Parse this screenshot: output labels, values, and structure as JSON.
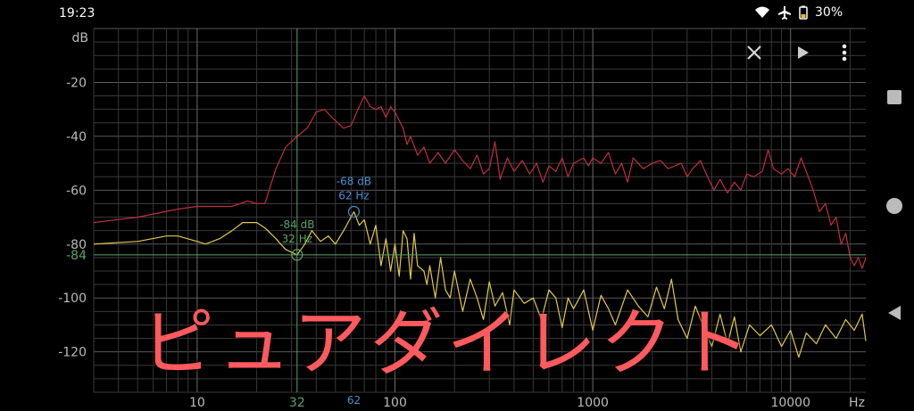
{
  "status_bar": {
    "time": "19:23",
    "icons": [
      "wifi-icon",
      "airplane-mode-icon",
      "battery-icon"
    ],
    "battery": "30%"
  },
  "toolbar": {
    "icons": [
      "close-icon",
      "play-icon",
      "more-vert-icon"
    ]
  },
  "navigation_bar": {
    "icons": [
      "recents-square-icon",
      "home-circle-icon",
      "back-triangle-icon"
    ]
  },
  "overlay_text": "ピュアダイレクト",
  "colors": {
    "series_red": "#c0303a",
    "series_yellow": "#e3c84a",
    "cursor_green": "#5aa36a",
    "cursor_blue": "#4a8fd0",
    "overlay": "#ff5a5e"
  },
  "chart_data": {
    "type": "line",
    "xscale": "log",
    "xlabel": "Hz",
    "ylabel": "dB",
    "xlim": [
      3,
      24000
    ],
    "ylim": [
      -135,
      0
    ],
    "grid": true,
    "x_ticks": [
      "10",
      "100",
      "1000",
      "10000"
    ],
    "y_ticks": [
      "-20",
      "-40",
      "-60",
      "-80",
      "-100",
      "-120"
    ],
    "cursors": [
      {
        "freq": 32,
        "db": -84,
        "db_label": "-84 dB",
        "freq_label": "32 Hz",
        "axis_freq_label": "32",
        "axis_db_label": "-84",
        "color": "#5aa36a"
      },
      {
        "freq": 62,
        "db": -68,
        "db_label": "-68 dB",
        "freq_label": "62 Hz",
        "axis_freq_label": "62",
        "color": "#4a8fd0"
      }
    ],
    "series": [
      {
        "color": "#c0303a",
        "points": [
          [
            3,
            -72
          ],
          [
            5,
            -70
          ],
          [
            8,
            -67
          ],
          [
            10,
            -66
          ],
          [
            15,
            -66
          ],
          [
            18,
            -64
          ],
          [
            20,
            -65
          ],
          [
            22,
            -65
          ],
          [
            25,
            -52
          ],
          [
            28,
            -44
          ],
          [
            32,
            -40
          ],
          [
            36,
            -37
          ],
          [
            40,
            -31
          ],
          [
            44,
            -30
          ],
          [
            48,
            -33
          ],
          [
            55,
            -37
          ],
          [
            60,
            -36
          ],
          [
            65,
            -30
          ],
          [
            70,
            -25
          ],
          [
            75,
            -29
          ],
          [
            80,
            -30
          ],
          [
            85,
            -29
          ],
          [
            90,
            -33
          ],
          [
            95,
            -29
          ],
          [
            100,
            -31
          ],
          [
            110,
            -37
          ],
          [
            115,
            -43
          ],
          [
            120,
            -40
          ],
          [
            130,
            -47
          ],
          [
            140,
            -44
          ],
          [
            150,
            -50
          ],
          [
            165,
            -46
          ],
          [
            180,
            -50
          ],
          [
            200,
            -45
          ],
          [
            220,
            -49
          ],
          [
            240,
            -52
          ],
          [
            260,
            -47
          ],
          [
            280,
            -54
          ],
          [
            300,
            -52
          ],
          [
            320,
            -42
          ],
          [
            340,
            -56
          ],
          [
            370,
            -48
          ],
          [
            400,
            -53
          ],
          [
            440,
            -49
          ],
          [
            480,
            -54
          ],
          [
            520,
            -50
          ],
          [
            560,
            -57
          ],
          [
            600,
            -51
          ],
          [
            650,
            -53
          ],
          [
            700,
            -48
          ],
          [
            750,
            -55
          ],
          [
            800,
            -50
          ],
          [
            900,
            -48
          ],
          [
            950,
            -51
          ],
          [
            1000,
            -48
          ],
          [
            1100,
            -50
          ],
          [
            1200,
            -46
          ],
          [
            1300,
            -54
          ],
          [
            1400,
            -50
          ],
          [
            1500,
            -57
          ],
          [
            1600,
            -48
          ],
          [
            1800,
            -52
          ],
          [
            2000,
            -50
          ],
          [
            2200,
            -49
          ],
          [
            2400,
            -52
          ],
          [
            2600,
            -51
          ],
          [
            2800,
            -50
          ],
          [
            3000,
            -55
          ],
          [
            3200,
            -52
          ],
          [
            3500,
            -49
          ],
          [
            3800,
            -55
          ],
          [
            4100,
            -60
          ],
          [
            4400,
            -56
          ],
          [
            4800,
            -61
          ],
          [
            5200,
            -57
          ],
          [
            5600,
            -60
          ],
          [
            6000,
            -54
          ],
          [
            6500,
            -55
          ],
          [
            7200,
            -53
          ],
          [
            7700,
            -45
          ],
          [
            8200,
            -52
          ],
          [
            9000,
            -54
          ],
          [
            9700,
            -52
          ],
          [
            10500,
            -55
          ],
          [
            11300,
            -48
          ],
          [
            12000,
            -53
          ],
          [
            13000,
            -60
          ],
          [
            14000,
            -68
          ],
          [
            15000,
            -65
          ],
          [
            16000,
            -73
          ],
          [
            17000,
            -70
          ],
          [
            18000,
            -80
          ],
          [
            19000,
            -76
          ],
          [
            20000,
            -85
          ],
          [
            21000,
            -88
          ],
          [
            22000,
            -85
          ],
          [
            23000,
            -89
          ],
          [
            24000,
            -85
          ]
        ]
      },
      {
        "color": "#e3c84a",
        "points": [
          [
            3,
            -80
          ],
          [
            5,
            -79
          ],
          [
            7,
            -77
          ],
          [
            8,
            -77
          ],
          [
            10,
            -79
          ],
          [
            11,
            -80
          ],
          [
            13,
            -78
          ],
          [
            15,
            -75
          ],
          [
            17,
            -72
          ],
          [
            20,
            -72
          ],
          [
            22,
            -74
          ],
          [
            25,
            -78
          ],
          [
            28,
            -82
          ],
          [
            32,
            -84
          ],
          [
            35,
            -80
          ],
          [
            38,
            -75
          ],
          [
            42,
            -79
          ],
          [
            46,
            -77
          ],
          [
            50,
            -80
          ],
          [
            55,
            -75
          ],
          [
            62,
            -68
          ],
          [
            66,
            -73
          ],
          [
            70,
            -71
          ],
          [
            75,
            -80
          ],
          [
            80,
            -73
          ],
          [
            85,
            -88
          ],
          [
            90,
            -78
          ],
          [
            95,
            -90
          ],
          [
            100,
            -80
          ],
          [
            105,
            -92
          ],
          [
            110,
            -75
          ],
          [
            115,
            -78
          ],
          [
            120,
            -93
          ],
          [
            125,
            -76
          ],
          [
            130,
            -88
          ],
          [
            140,
            -90
          ],
          [
            145,
            -95
          ],
          [
            150,
            -88
          ],
          [
            160,
            -100
          ],
          [
            170,
            -85
          ],
          [
            180,
            -97
          ],
          [
            190,
            -100
          ],
          [
            200,
            -90
          ],
          [
            220,
            -105
          ],
          [
            240,
            -93
          ],
          [
            260,
            -100
          ],
          [
            280,
            -108
          ],
          [
            300,
            -94
          ],
          [
            320,
            -103
          ],
          [
            350,
            -98
          ],
          [
            380,
            -110
          ],
          [
            400,
            -97
          ],
          [
            450,
            -102
          ],
          [
            500,
            -100
          ],
          [
            550,
            -108
          ],
          [
            600,
            -97
          ],
          [
            650,
            -100
          ],
          [
            700,
            -111
          ],
          [
            750,
            -100
          ],
          [
            800,
            -104
          ],
          [
            900,
            -97
          ],
          [
            1000,
            -112
          ],
          [
            1100,
            -99
          ],
          [
            1200,
            -104
          ],
          [
            1300,
            -110
          ],
          [
            1500,
            -97
          ],
          [
            1700,
            -103
          ],
          [
            1900,
            -107
          ],
          [
            2100,
            -96
          ],
          [
            2300,
            -104
          ],
          [
            2500,
            -93
          ],
          [
            2700,
            -108
          ],
          [
            3000,
            -115
          ],
          [
            3300,
            -103
          ],
          [
            3600,
            -110
          ],
          [
            4000,
            -118
          ],
          [
            4400,
            -106
          ],
          [
            4800,
            -117
          ],
          [
            5200,
            -107
          ],
          [
            5600,
            -120
          ],
          [
            6200,
            -110
          ],
          [
            7000,
            -114
          ],
          [
            8000,
            -110
          ],
          [
            9000,
            -118
          ],
          [
            10000,
            -112
          ],
          [
            11000,
            -122
          ],
          [
            12000,
            -113
          ],
          [
            13500,
            -117
          ],
          [
            15000,
            -110
          ],
          [
            17000,
            -115
          ],
          [
            19000,
            -108
          ],
          [
            21000,
            -112
          ],
          [
            23000,
            -106
          ],
          [
            24000,
            -116
          ]
        ]
      }
    ]
  }
}
